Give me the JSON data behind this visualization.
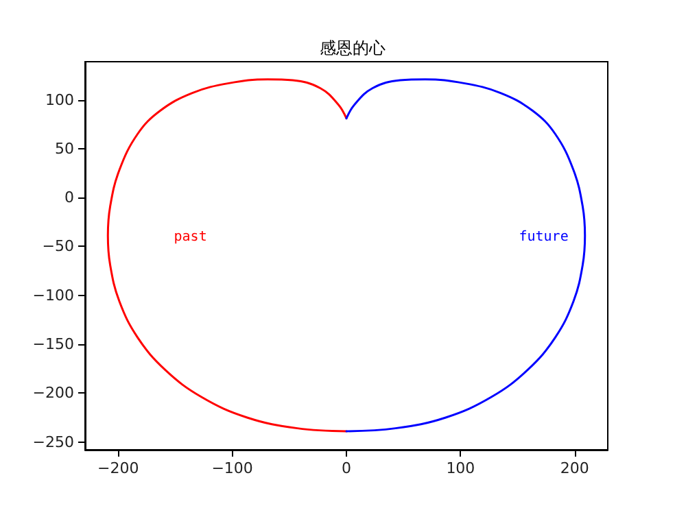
{
  "chart_data": {
    "type": "line",
    "title": "感恩的心",
    "series": [
      {
        "color": "#ff0000",
        "x": [
          0,
          -7,
          -23,
          -47,
          -69,
          -103,
          -135,
          -163,
          -183,
          -199,
          -207,
          -209,
          -207,
          -199,
          -183,
          -159,
          -127,
          -87,
          -43,
          0
        ],
        "values": [
          81,
          95,
          112,
          120,
          121,
          117,
          107,
          89,
          65,
          28,
          -9,
          -39,
          -69,
          -106,
          -143,
          -176,
          -204,
          -225,
          -236,
          -239
        ]
      },
      {
        "color": "#0000ff",
        "x": [
          0,
          7,
          23,
          47,
          69,
          103,
          135,
          163,
          183,
          199,
          207,
          209,
          207,
          199,
          183,
          159,
          127,
          87,
          43,
          0
        ],
        "values": [
          81,
          95,
          112,
          120,
          121,
          117,
          107,
          89,
          65,
          28,
          -9,
          -39,
          -69,
          -106,
          -143,
          -176,
          -204,
          -225,
          -236,
          -239
        ]
      }
    ],
    "annotations": [
      "past",
      "future"
    ],
    "xlim": [
      -229,
      229
    ],
    "xticks": [
      -200,
      -100,
      0,
      100,
      200
    ],
    "ylim": [
      -258,
      139
    ],
    "yticks": [
      -250,
      -200,
      -150,
      -100,
      -50,
      0,
      50,
      100
    ],
    "grid": false,
    "line_style": "solid",
    "marker": "none"
  }
}
